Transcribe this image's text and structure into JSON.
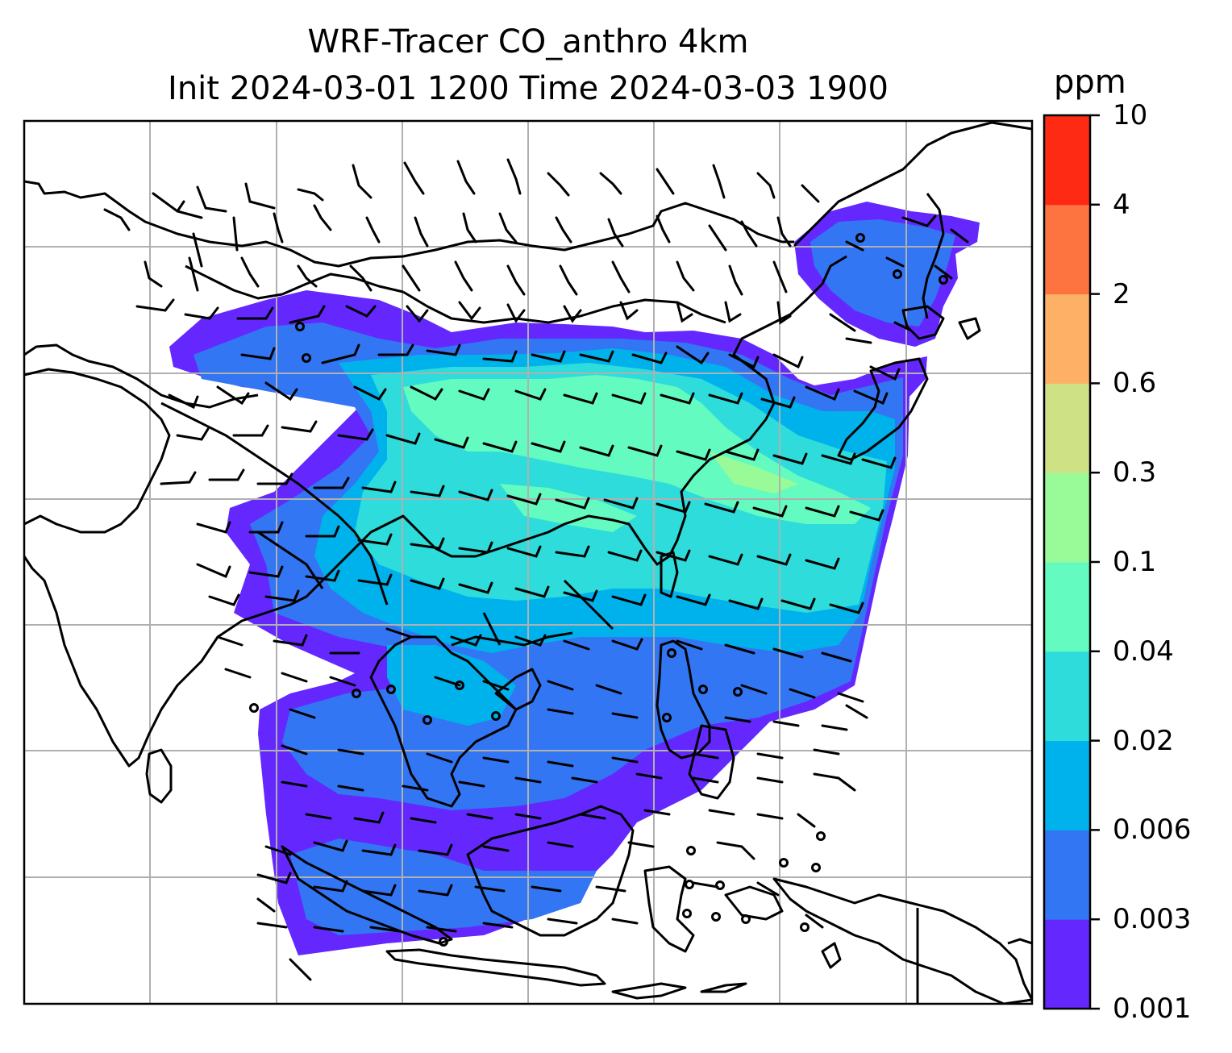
{
  "title": {
    "line1": "WRF-Tracer CO_anthro 4km",
    "line2": "Init 2024-03-01 1200 Time 2024-03-03 1900"
  },
  "colorbar": {
    "unit": "ppm",
    "ticks": [
      "10",
      "4",
      "2",
      "0.6",
      "0.3",
      "0.1",
      "0.04",
      "0.02",
      "0.006",
      "0.003",
      "0.001"
    ],
    "levels": [
      0.001,
      0.003,
      0.006,
      0.02,
      0.04,
      0.1,
      0.3,
      0.6,
      2,
      4,
      10
    ],
    "colors": [
      "#6428ff",
      "#3276f4",
      "#00b2ec",
      "#2ddcdb",
      "#64fbc0",
      "#98fb98",
      "#cfe185",
      "#feb067",
      "#fe7440",
      "#ff2a14"
    ]
  },
  "map": {
    "grid": "on",
    "field": "CO_anthro",
    "wind_barbs": "on"
  }
}
